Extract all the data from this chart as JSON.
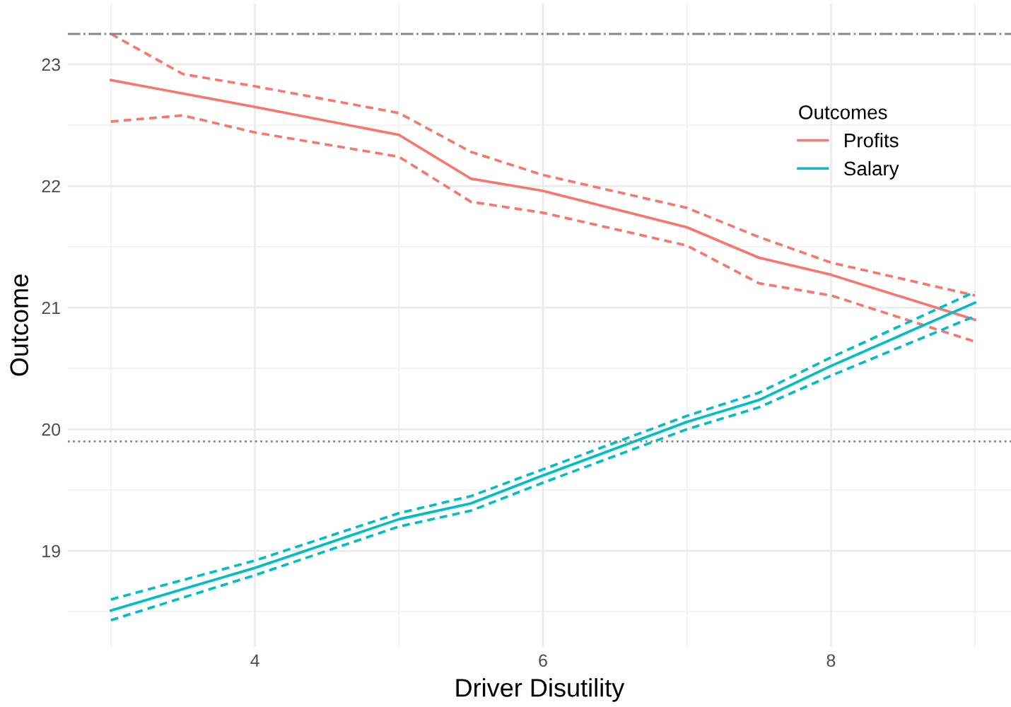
{
  "chart_data": {
    "type": "line",
    "xlabel": "Driver Disutility",
    "ylabel": "Outcome",
    "legend_title": "Outcomes",
    "legend": "top right",
    "grid": true,
    "line_style": "solid",
    "marker": "none",
    "xlim": [
      2.7,
      9.25
    ],
    "xticks": [
      4,
      6,
      8
    ],
    "ylim": [
      18.21,
      23.5
    ],
    "yticks": [
      19,
      20,
      21,
      22,
      23
    ],
    "series": [
      {
        "name": "Profits",
        "color": "#f8766d",
        "x": [
          3,
          3.5,
          4,
          5,
          5.5,
          6,
          7,
          7.5,
          8,
          9
        ],
        "values": [
          22.87,
          22.76,
          22.65,
          22.42,
          22.06,
          21.96,
          21.66,
          21.41,
          21.27,
          20.9
        ]
      },
      {
        "color": "#f8766d",
        "line_style": "dashed",
        "x": [
          3,
          3.5,
          4,
          5,
          5.5,
          6,
          7,
          7.5,
          8,
          9
        ],
        "values": [
          23.25,
          22.92,
          22.82,
          22.6,
          22.28,
          22.09,
          21.82,
          21.58,
          21.37,
          21.1
        ]
      },
      {
        "color": "#f8766d",
        "line_style": "dashed",
        "x": [
          3,
          3.5,
          4,
          5,
          5.5,
          6,
          7,
          7.5,
          8,
          9
        ],
        "values": [
          22.53,
          22.58,
          22.44,
          22.24,
          21.87,
          21.78,
          21.51,
          21.2,
          21.1,
          20.72
        ]
      },
      {
        "name": "Salary",
        "color": "#00bfc4",
        "x": [
          3,
          4,
          5,
          5.5,
          6,
          7,
          7.5,
          8,
          9
        ],
        "values": [
          18.51,
          18.86,
          19.26,
          19.39,
          19.62,
          20.06,
          20.24,
          20.52,
          21.04
        ]
      },
      {
        "color": "#00bfc4",
        "line_style": "dashed",
        "x": [
          3,
          4,
          5,
          5.5,
          6,
          7,
          7.5,
          8,
          9
        ],
        "values": [
          18.6,
          18.92,
          19.31,
          19.45,
          19.67,
          20.11,
          20.3,
          20.59,
          21.13
        ]
      },
      {
        "color": "#00bfc4",
        "line_style": "dashed",
        "x": [
          3,
          4,
          5,
          5.5,
          6,
          7,
          7.5,
          8,
          9
        ],
        "values": [
          18.43,
          18.8,
          19.2,
          19.33,
          19.56,
          20.0,
          20.18,
          20.44,
          20.93
        ]
      }
    ],
    "ref_lines": [
      {
        "axis": "y",
        "value": 23.25,
        "color": "#888888",
        "line_style": "dashdot"
      },
      {
        "axis": "y",
        "value": 19.9,
        "color": "#888888",
        "line_style": "dotted"
      }
    ]
  }
}
